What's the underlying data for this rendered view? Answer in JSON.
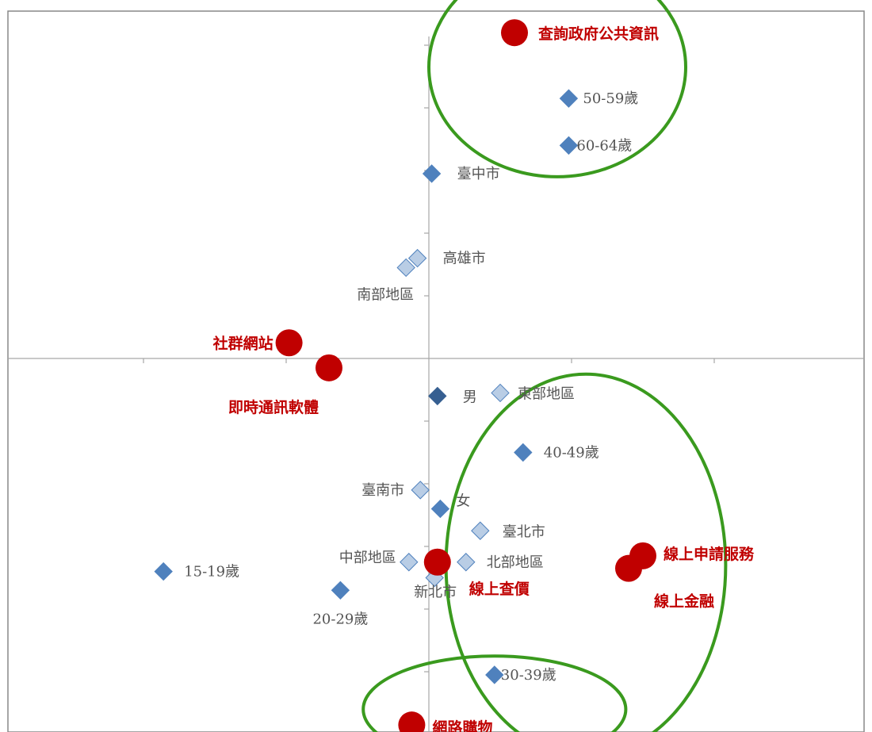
{
  "chart_data": {
    "type": "scatter",
    "title": "",
    "xlabel": "",
    "ylabel": "",
    "xlim": [
      -1.5,
      1.5
    ],
    "ylim": [
      -1.2,
      1.2
    ],
    "grid": false,
    "colors": {
      "attribute": "#4f81bd",
      "attribute_light": "#b9cde5",
      "attribute_dark": "#365f91",
      "activity": "#c00000",
      "cluster_ellipse": "#3a9a1e",
      "axis": "#a6a6a6"
    },
    "series": [
      {
        "group": "attributes",
        "marker": "diamond",
        "points": [
          {
            "label": "50-59歲",
            "x": 0.49,
            "y": 0.83,
            "style": "attribute"
          },
          {
            "label": "60-64歲",
            "x": 0.49,
            "y": 0.68,
            "style": "attribute"
          },
          {
            "label": "臺中市",
            "x": 0.01,
            "y": 0.59,
            "style": "attribute"
          },
          {
            "label": "高雄市",
            "x": -0.04,
            "y": 0.32,
            "style": "attribute_light"
          },
          {
            "label": "南部地區",
            "x": -0.08,
            "y": 0.29,
            "style": "attribute_light"
          },
          {
            "label": "男",
            "x": 0.03,
            "y": -0.12,
            "style": "attribute_dark"
          },
          {
            "label": "東部地區",
            "x": 0.25,
            "y": -0.11,
            "style": "attribute_light"
          },
          {
            "label": "40-49歲",
            "x": 0.33,
            "y": -0.3,
            "style": "attribute"
          },
          {
            "label": "臺南市",
            "x": -0.03,
            "y": -0.42,
            "style": "attribute_light"
          },
          {
            "label": "女",
            "x": 0.04,
            "y": -0.48,
            "style": "attribute"
          },
          {
            "label": "臺北市",
            "x": 0.18,
            "y": -0.55,
            "style": "attribute_light"
          },
          {
            "label": "中部地區",
            "x": -0.07,
            "y": -0.65,
            "style": "attribute_light"
          },
          {
            "label": "北部地區",
            "x": 0.13,
            "y": -0.65,
            "style": "attribute_light"
          },
          {
            "label": "新北市",
            "x": 0.02,
            "y": -0.7,
            "style": "attribute_light"
          },
          {
            "label": "15-19歲",
            "x": -0.93,
            "y": -0.68,
            "style": "attribute"
          },
          {
            "label": "20-29歲",
            "x": -0.31,
            "y": -0.74,
            "style": "attribute"
          },
          {
            "label": "30-39歲",
            "x": 0.23,
            "y": -1.01,
            "style": "attribute"
          }
        ]
      },
      {
        "group": "activities",
        "marker": "circle",
        "points": [
          {
            "label": "查詢政府公共資訊",
            "x": 0.3,
            "y": 1.04,
            "style": "activity"
          },
          {
            "label": "社群網站",
            "x": -0.49,
            "y": 0.05,
            "style": "activity"
          },
          {
            "label": "即時通訊軟體",
            "x": -0.35,
            "y": -0.03,
            "style": "activity"
          },
          {
            "label": "線上查價",
            "x": 0.03,
            "y": -0.65,
            "style": "activity"
          },
          {
            "label": "線上申請服務",
            "x": 0.75,
            "y": -0.63,
            "style": "activity"
          },
          {
            "label": "線上金融",
            "x": 0.7,
            "y": -0.67,
            "style": "activity"
          },
          {
            "label": "網路購物",
            "x": -0.06,
            "y": -1.17,
            "style": "activity"
          }
        ]
      }
    ],
    "clusters": [
      {
        "cx": 0.45,
        "cy": 0.93,
        "rx": 0.45,
        "ry": 0.35
      },
      {
        "cx": 0.55,
        "cy": -0.66,
        "rx": 0.49,
        "ry": 0.61
      },
      {
        "cx": 0.23,
        "cy": -1.12,
        "rx": 0.46,
        "ry": 0.17
      }
    ]
  }
}
